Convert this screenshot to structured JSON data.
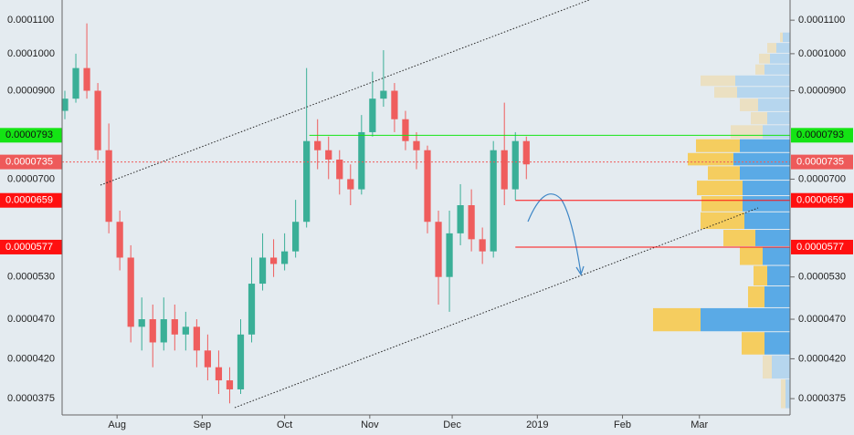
{
  "chart_data": {
    "type": "candlestick",
    "x": [
      12,
      16,
      20,
      24,
      28,
      32,
      36,
      40,
      44,
      48,
      52,
      56,
      60,
      64,
      68,
      72,
      76,
      80,
      84,
      88,
      92,
      96,
      100,
      104,
      108,
      112,
      116,
      120,
      124,
      128,
      132,
      136,
      140,
      144,
      148,
      152,
      156,
      160,
      164,
      168,
      172,
      176,
      180
    ],
    "open": [
      8.5e-05,
      8.8e-05,
      9.6e-05,
      9e-05,
      7.6e-05,
      6.2e-05,
      5.6e-05,
      4.6e-05,
      4.7e-05,
      4.4e-05,
      4.7e-05,
      4.5e-05,
      4.6e-05,
      4.3e-05,
      4.1e-05,
      3.95e-05,
      3.85e-05,
      4.5e-05,
      5.2e-05,
      5.6e-05,
      5.5e-05,
      5.7e-05,
      6.2e-05,
      7.8e-05,
      7.6e-05,
      7.4e-05,
      7e-05,
      6.8e-05,
      8e-05,
      8.8e-05,
      9e-05,
      8.3e-05,
      7.8e-05,
      7.6e-05,
      6.2e-05,
      5.3e-05,
      6e-05,
      6.5e-05,
      5.9e-05,
      5.7e-05,
      7.6e-05,
      6.8e-05,
      7.8e-05
    ],
    "high": [
      9e-05,
      0.0001,
      0.000109,
      9.2e-05,
      8.2e-05,
      6.4e-05,
      5.8e-05,
      5e-05,
      4.9e-05,
      5e-05,
      4.9e-05,
      4.8e-05,
      4.7e-05,
      4.5e-05,
      4.3e-05,
      4.1e-05,
      4.7e-05,
      5.6e-05,
      6e-05,
      5.9e-05,
      6e-05,
      6.6e-05,
      9.6e-05,
      8.3e-05,
      7.9e-05,
      7.6e-05,
      7.3e-05,
      8.4e-05,
      9.5e-05,
      0.000101,
      9.2e-05,
      8.5e-05,
      8e-05,
      7.7e-05,
      6.4e-05,
      6.4e-05,
      6.9e-05,
      6.8e-05,
      6.1e-05,
      7.8e-05,
      8.7e-05,
      8e-05,
      7.9e-05
    ],
    "low": [
      8.3e-05,
      8.7e-05,
      8.8e-05,
      7.4e-05,
      6e-05,
      5.4e-05,
      4.4e-05,
      4.3e-05,
      4.1e-05,
      4.3e-05,
      4.3e-05,
      4.3e-05,
      4.1e-05,
      3.95e-05,
      3.8e-05,
      3.7e-05,
      3.8e-05,
      4.4e-05,
      5.1e-05,
      5.3e-05,
      5.4e-05,
      5.6e-05,
      6.1e-05,
      7.2e-05,
      7e-05,
      6.7e-05,
      6.5e-05,
      6.7e-05,
      7.9e-05,
      8.6e-05,
      8e-05,
      7.6e-05,
      7.2e-05,
      6e-05,
      4.9e-05,
      4.8e-05,
      5.8e-05,
      5.7e-05,
      5.5e-05,
      5.6e-05,
      6.5e-05,
      6.6e-05,
      7e-05
    ],
    "close": [
      8.8e-05,
      9.6e-05,
      9e-05,
      7.6e-05,
      6.2e-05,
      5.6e-05,
      4.6e-05,
      4.7e-05,
      4.4e-05,
      4.7e-05,
      4.5e-05,
      4.6e-05,
      4.3e-05,
      4.1e-05,
      3.95e-05,
      3.85e-05,
      4.5e-05,
      5.2e-05,
      5.6e-05,
      5.5e-05,
      5.7e-05,
      6.2e-05,
      7.8e-05,
      7.6e-05,
      7.4e-05,
      7e-05,
      6.8e-05,
      8e-05,
      8.8e-05,
      9e-05,
      8.3e-05,
      7.8e-05,
      7.6e-05,
      6.2e-05,
      5.3e-05,
      6e-05,
      6.5e-05,
      5.9e-05,
      5.7e-05,
      7.6e-05,
      6.8e-05,
      7.8e-05,
      7.3e-05
    ],
    "up_color": "#3aaf97",
    "down_color": "#ef5d5d",
    "xlim": [
      11,
      276
    ],
    "xticks": [
      {
        "value": 31,
        "label": "Aug"
      },
      {
        "value": 62,
        "label": "Sep"
      },
      {
        "value": 92,
        "label": "Oct"
      },
      {
        "value": 123,
        "label": "Nov"
      },
      {
        "value": 153,
        "label": "Dec"
      },
      {
        "value": 184,
        "label": "2019"
      },
      {
        "value": 215,
        "label": "Feb"
      },
      {
        "value": 243,
        "label": "Mar"
      }
    ],
    "ylim": [
      3.58e-05,
      0.0001165
    ],
    "log_scale": true,
    "yticks": [
      {
        "value": 0.00011,
        "label": "0.0001100"
      },
      {
        "value": 0.0001,
        "label": "0.0001000"
      },
      {
        "value": 9e-05,
        "label": "0.0000900"
      },
      {
        "value": 7e-05,
        "label": "0.0000700"
      },
      {
        "value": 5.3e-05,
        "label": "0.0000530"
      },
      {
        "value": 4.7e-05,
        "label": "0.0000470"
      },
      {
        "value": 4.2e-05,
        "label": "0.0000420"
      },
      {
        "value": 3.75e-05,
        "label": "0.0000375"
      }
    ],
    "levels": [
      {
        "value": 7.93e-05,
        "label": "0.0000793",
        "color": "#14e414",
        "text_color": "#111111",
        "from": 101
      },
      {
        "value": 7.35e-05,
        "label": "0.0000735",
        "color": "#ee5a5a",
        "text_color": "#ffffff",
        "dashed": true
      },
      {
        "value": 6.59e-05,
        "label": "0.0000659",
        "color": "#ff1010",
        "text_color": "#ffffff",
        "from": 176
      },
      {
        "value": 5.77e-05,
        "label": "0.0000577",
        "color": "#ff1010",
        "text_color": "#ffffff",
        "from": 176
      }
    ],
    "volume_profile": {
      "volume_lim": [
        0,
        150
      ],
      "colors": {
        "up": "#f5cd5f",
        "down": "#5aaae6",
        "up_faded": "#ebe0c2",
        "down_faded": "#b6d6ee"
      },
      "rows": [
        {
          "low": 0.0001031,
          "high": 0.0001062,
          "down": 8,
          "up": 3,
          "value_area": false
        },
        {
          "low": 0.0001,
          "high": 0.0001031,
          "down": 15,
          "up": 10,
          "value_area": false
        },
        {
          "low": 9.7e-05,
          "high": 0.0001,
          "down": 22,
          "up": 12,
          "value_area": false
        },
        {
          "low": 9.4e-05,
          "high": 9.7e-05,
          "down": 28,
          "up": 10,
          "value_area": false
        },
        {
          "low": 9.1e-05,
          "high": 9.4e-05,
          "down": 60,
          "up": 38,
          "value_area": false
        },
        {
          "low": 8.8e-05,
          "high": 9.1e-05,
          "down": 58,
          "up": 25,
          "value_area": false
        },
        {
          "low": 8.47e-05,
          "high": 8.8e-05,
          "down": 35,
          "up": 20,
          "value_area": false
        },
        {
          "low": 8.16e-05,
          "high": 8.47e-05,
          "down": 25,
          "up": 18,
          "value_area": false
        },
        {
          "low": 7.84e-05,
          "high": 8.16e-05,
          "down": 30,
          "up": 35,
          "value_area": false
        },
        {
          "low": 7.54e-05,
          "high": 7.84e-05,
          "down": 55,
          "up": 48,
          "value_area": true
        },
        {
          "low": 7.26e-05,
          "high": 7.54e-05,
          "down": 62,
          "up": 50,
          "value_area": true
        },
        {
          "low": 6.97e-05,
          "high": 7.26e-05,
          "down": 55,
          "up": 35,
          "value_area": true
        },
        {
          "low": 6.67e-05,
          "high": 6.97e-05,
          "down": 52,
          "up": 50,
          "value_area": true
        },
        {
          "low": 6.37e-05,
          "high": 6.67e-05,
          "down": 52,
          "up": 45,
          "value_area": true
        },
        {
          "low": 6.06e-05,
          "high": 6.37e-05,
          "down": 50,
          "up": 48,
          "value_area": true
        },
        {
          "low": 5.77e-05,
          "high": 6.06e-05,
          "down": 38,
          "up": 35,
          "value_area": true
        },
        {
          "low": 5.47e-05,
          "high": 5.77e-05,
          "down": 30,
          "up": 25,
          "value_area": true
        },
        {
          "low": 5.16e-05,
          "high": 5.47e-05,
          "down": 25,
          "up": 15,
          "value_area": true
        },
        {
          "low": 4.85e-05,
          "high": 5.16e-05,
          "down": 28,
          "up": 18,
          "value_area": true
        },
        {
          "low": 4.53e-05,
          "high": 4.85e-05,
          "down": 98,
          "up": 52,
          "value_area": true
        },
        {
          "low": 4.24e-05,
          "high": 4.53e-05,
          "down": 28,
          "up": 25,
          "value_area": true
        },
        {
          "low": 3.96e-05,
          "high": 4.24e-05,
          "down": 20,
          "up": 10,
          "value_area": false
        },
        {
          "low": 3.64e-05,
          "high": 3.96e-05,
          "down": 5,
          "up": 5,
          "value_area": false
        }
      ]
    }
  }
}
